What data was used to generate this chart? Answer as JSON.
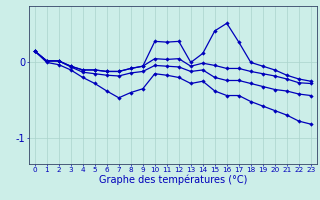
{
  "xlabel": "Graphe des températures (°C)",
  "hours": [
    0,
    1,
    2,
    3,
    4,
    5,
    6,
    7,
    8,
    9,
    10,
    11,
    12,
    13,
    14,
    15,
    16,
    17,
    18,
    19,
    20,
    21,
    22,
    23
  ],
  "line_top": [
    0.15,
    0.02,
    0.02,
    -0.05,
    -0.1,
    -0.1,
    -0.12,
    -0.12,
    -0.08,
    -0.05,
    0.28,
    0.27,
    0.28,
    0.0,
    0.12,
    0.42,
    0.52,
    0.27,
    0.0,
    -0.05,
    -0.1,
    -0.17,
    -0.22,
    -0.25
  ],
  "line_mid1": [
    0.15,
    0.02,
    0.02,
    -0.05,
    -0.1,
    -0.1,
    -0.12,
    -0.12,
    -0.08,
    -0.05,
    0.05,
    0.04,
    0.05,
    -0.05,
    -0.01,
    -0.04,
    -0.08,
    -0.08,
    -0.12,
    -0.15,
    -0.18,
    -0.22,
    -0.27,
    -0.28
  ],
  "line_mid2": [
    0.15,
    0.02,
    0.02,
    -0.06,
    -0.13,
    -0.15,
    -0.17,
    -0.18,
    -0.14,
    -0.12,
    -0.04,
    -0.05,
    -0.06,
    -0.12,
    -0.1,
    -0.2,
    -0.24,
    -0.24,
    -0.28,
    -0.32,
    -0.36,
    -0.38,
    -0.42,
    -0.44
  ],
  "line_bottom": [
    0.15,
    0.0,
    -0.03,
    -0.1,
    -0.2,
    -0.28,
    -0.38,
    -0.47,
    -0.4,
    -0.35,
    -0.15,
    -0.17,
    -0.2,
    -0.28,
    -0.25,
    -0.38,
    -0.44,
    -0.44,
    -0.52,
    -0.58,
    -0.64,
    -0.7,
    -0.78,
    -0.82
  ],
  "ylim": [
    -1.35,
    0.75
  ],
  "yticks": [
    -1,
    0
  ],
  "line_color": "#0000bb",
  "bg_color": "#cceee8",
  "grid_color": "#aad4cc",
  "axis_color": "#334466"
}
